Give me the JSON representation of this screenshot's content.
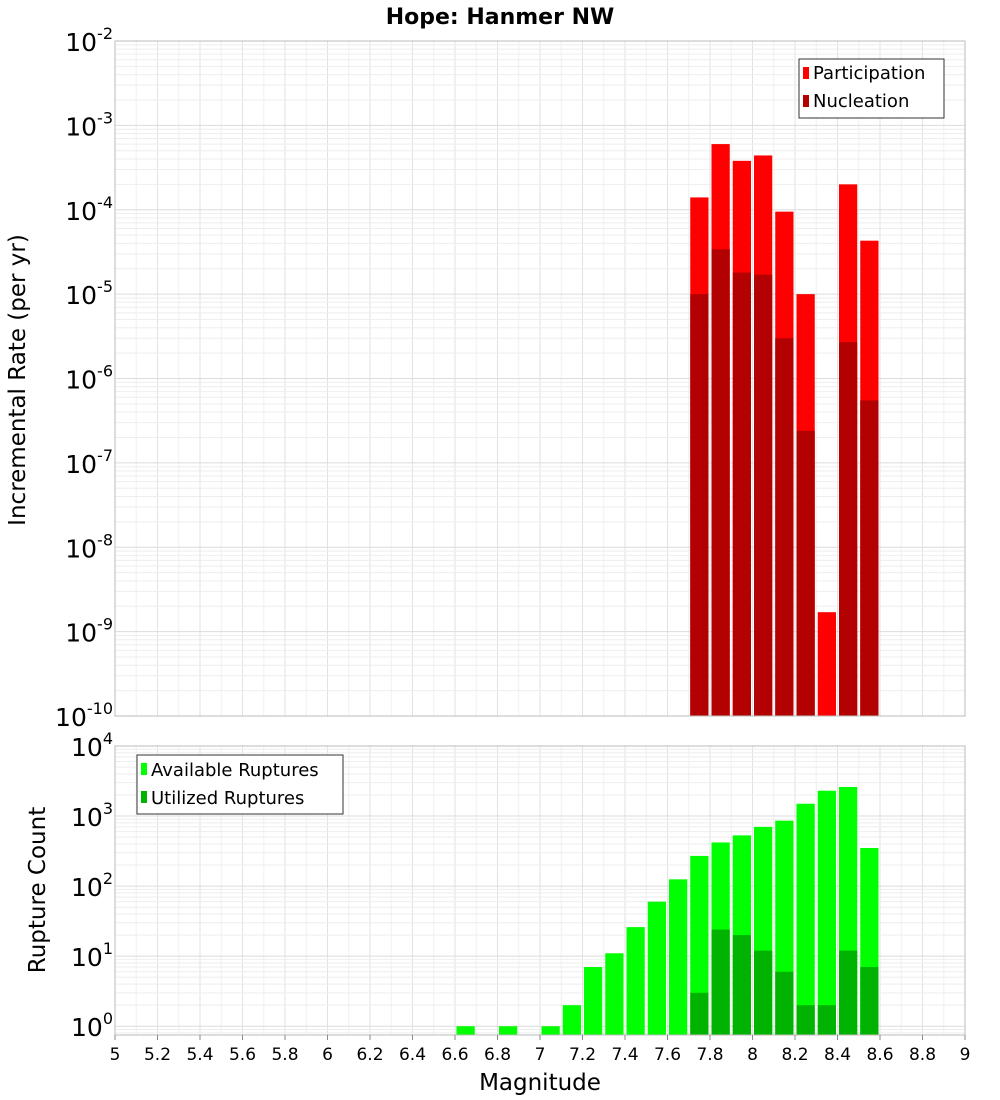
{
  "title": "Hope: Hanmer NW",
  "colors": {
    "participation": "#ff0000",
    "nucleation": "#b30000",
    "available": "#00ff00",
    "utilized": "#00b300"
  },
  "chart_data": [
    {
      "type": "bar",
      "scale": "log",
      "ylabel": "Incremental Rate (per yr)",
      "xlim": [
        5,
        9
      ],
      "ylim": [
        1e-10,
        0.01
      ],
      "ytick_exponents": [
        -10,
        -9,
        -8,
        -7,
        -6,
        -5,
        -4,
        -3,
        -2
      ],
      "grid": true,
      "legend_position": "top-right",
      "x": [
        7.75,
        7.85,
        7.95,
        8.05,
        8.15,
        8.25,
        8.35,
        8.45,
        8.55
      ],
      "series": [
        {
          "name": "Participation",
          "values": [
            0.00014,
            0.0006,
            0.00038,
            0.00044,
            9.5e-05,
            1e-05,
            1.7e-09,
            0.0002,
            4.3e-05
          ]
        },
        {
          "name": "Nucleation",
          "values": [
            1e-05,
            3.4e-05,
            1.8e-05,
            1.7e-05,
            3e-06,
            2.4e-07,
            null,
            2.7e-06,
            5.5e-07
          ]
        }
      ]
    },
    {
      "type": "bar",
      "scale": "log",
      "xlabel": "Magnitude",
      "ylabel": "Rupture Count",
      "xlim": [
        5,
        9
      ],
      "ylim": [
        0.75,
        10000
      ],
      "ytick_exponents": [
        0,
        1,
        2,
        3,
        4
      ],
      "xticks": [
        "5",
        "5.2",
        "5.4",
        "5.6",
        "5.8",
        "6",
        "6.2",
        "6.4",
        "6.6",
        "6.8",
        "7",
        "7.2",
        "7.4",
        "7.6",
        "7.8",
        "8",
        "8.2",
        "8.4",
        "8.6",
        "8.8",
        "9"
      ],
      "grid": true,
      "legend_position": "top-left",
      "x": [
        6.65,
        6.85,
        7.05,
        7.15,
        7.25,
        7.35,
        7.45,
        7.55,
        7.65,
        7.75,
        7.85,
        7.95,
        8.05,
        8.15,
        8.25,
        8.35,
        8.45,
        8.55
      ],
      "series": [
        {
          "name": "Available Ruptures",
          "values": [
            1,
            1,
            1,
            2,
            7,
            11,
            26,
            60,
            125,
            270,
            420,
            530,
            700,
            860,
            1500,
            2300,
            2600,
            350
          ]
        },
        {
          "name": "Utilized Ruptures",
          "values": [
            null,
            null,
            null,
            null,
            null,
            null,
            null,
            null,
            null,
            3,
            24,
            20,
            12,
            6,
            2,
            2,
            12,
            7
          ]
        }
      ]
    }
  ]
}
